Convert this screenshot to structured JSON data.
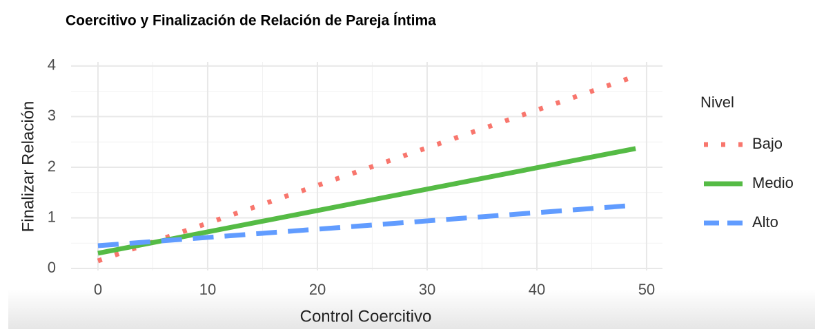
{
  "chart_data": {
    "type": "line",
    "title": "Coercitivo y Finalización de Relación de Pareja Íntima",
    "x_label": "Control Coercitivo",
    "y_label": "Finalizar Relación",
    "legend_title": "Nivel",
    "x": [
      0,
      49
    ],
    "series": [
      {
        "name": "Bajo",
        "color": "#F8766D",
        "style": "dotted",
        "values": [
          0.15,
          3.8
        ]
      },
      {
        "name": "Medio",
        "color": "#55BB45",
        "style": "solid",
        "values": [
          0.3,
          2.37
        ]
      },
      {
        "name": "Alto",
        "color": "#619CFF",
        "style": "dashed",
        "values": [
          0.45,
          1.25
        ]
      }
    ],
    "xlim": [
      -2.45,
      51.45
    ],
    "xticks": [
      0,
      10,
      20,
      30,
      40,
      50
    ],
    "x_minor_ticks": [
      5,
      15,
      25,
      35,
      45
    ],
    "ylim": [
      -0.04,
      4.08
    ],
    "yticks": [
      0,
      1,
      2,
      3,
      4
    ],
    "y_minor_ticks": [
      0.5,
      1.5,
      2.5,
      3.5
    ],
    "grid": true,
    "legend": "right"
  }
}
